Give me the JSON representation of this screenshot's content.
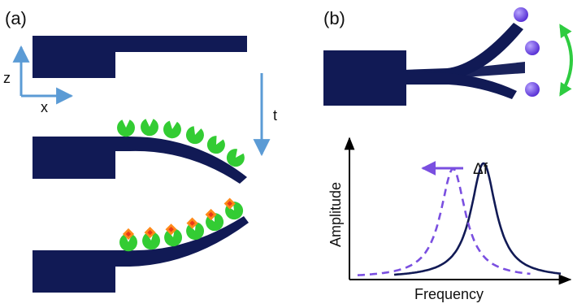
{
  "panel_a": {
    "label": "(a)",
    "axis_z": "z",
    "axis_x": "x",
    "time_label": "t"
  },
  "panel_b": {
    "label": "(b)",
    "shift_label": "Δf",
    "xlabel": "Frequency",
    "ylabel": "Amplitude"
  },
  "colors": {
    "beam": "#111a55",
    "receptor": "#33cc33",
    "analyte": "#ff8a1a",
    "analyte_core": "#e83a1a",
    "arrow_blue": "#5b9bd5",
    "shifted_curve": "#7a4fe0",
    "particle": "#6b45e8",
    "oscillation_arrow": "#2ecc40"
  },
  "icons": {
    "receptor": "pacman-receptor-icon",
    "analyte": "diamond-analyte-icon",
    "particle": "sphere-particle-icon"
  },
  "chart_data": {
    "type": "line",
    "series": [
      {
        "style": "solid",
        "peak_frequency": 0.62,
        "peak_amplitude": 0.82
      },
      {
        "style": "dashed",
        "peak_frequency": 0.47,
        "peak_amplitude": 0.78
      }
    ],
    "xlabel": "Frequency",
    "ylabel": "Amplitude",
    "annotation": "Δf"
  }
}
